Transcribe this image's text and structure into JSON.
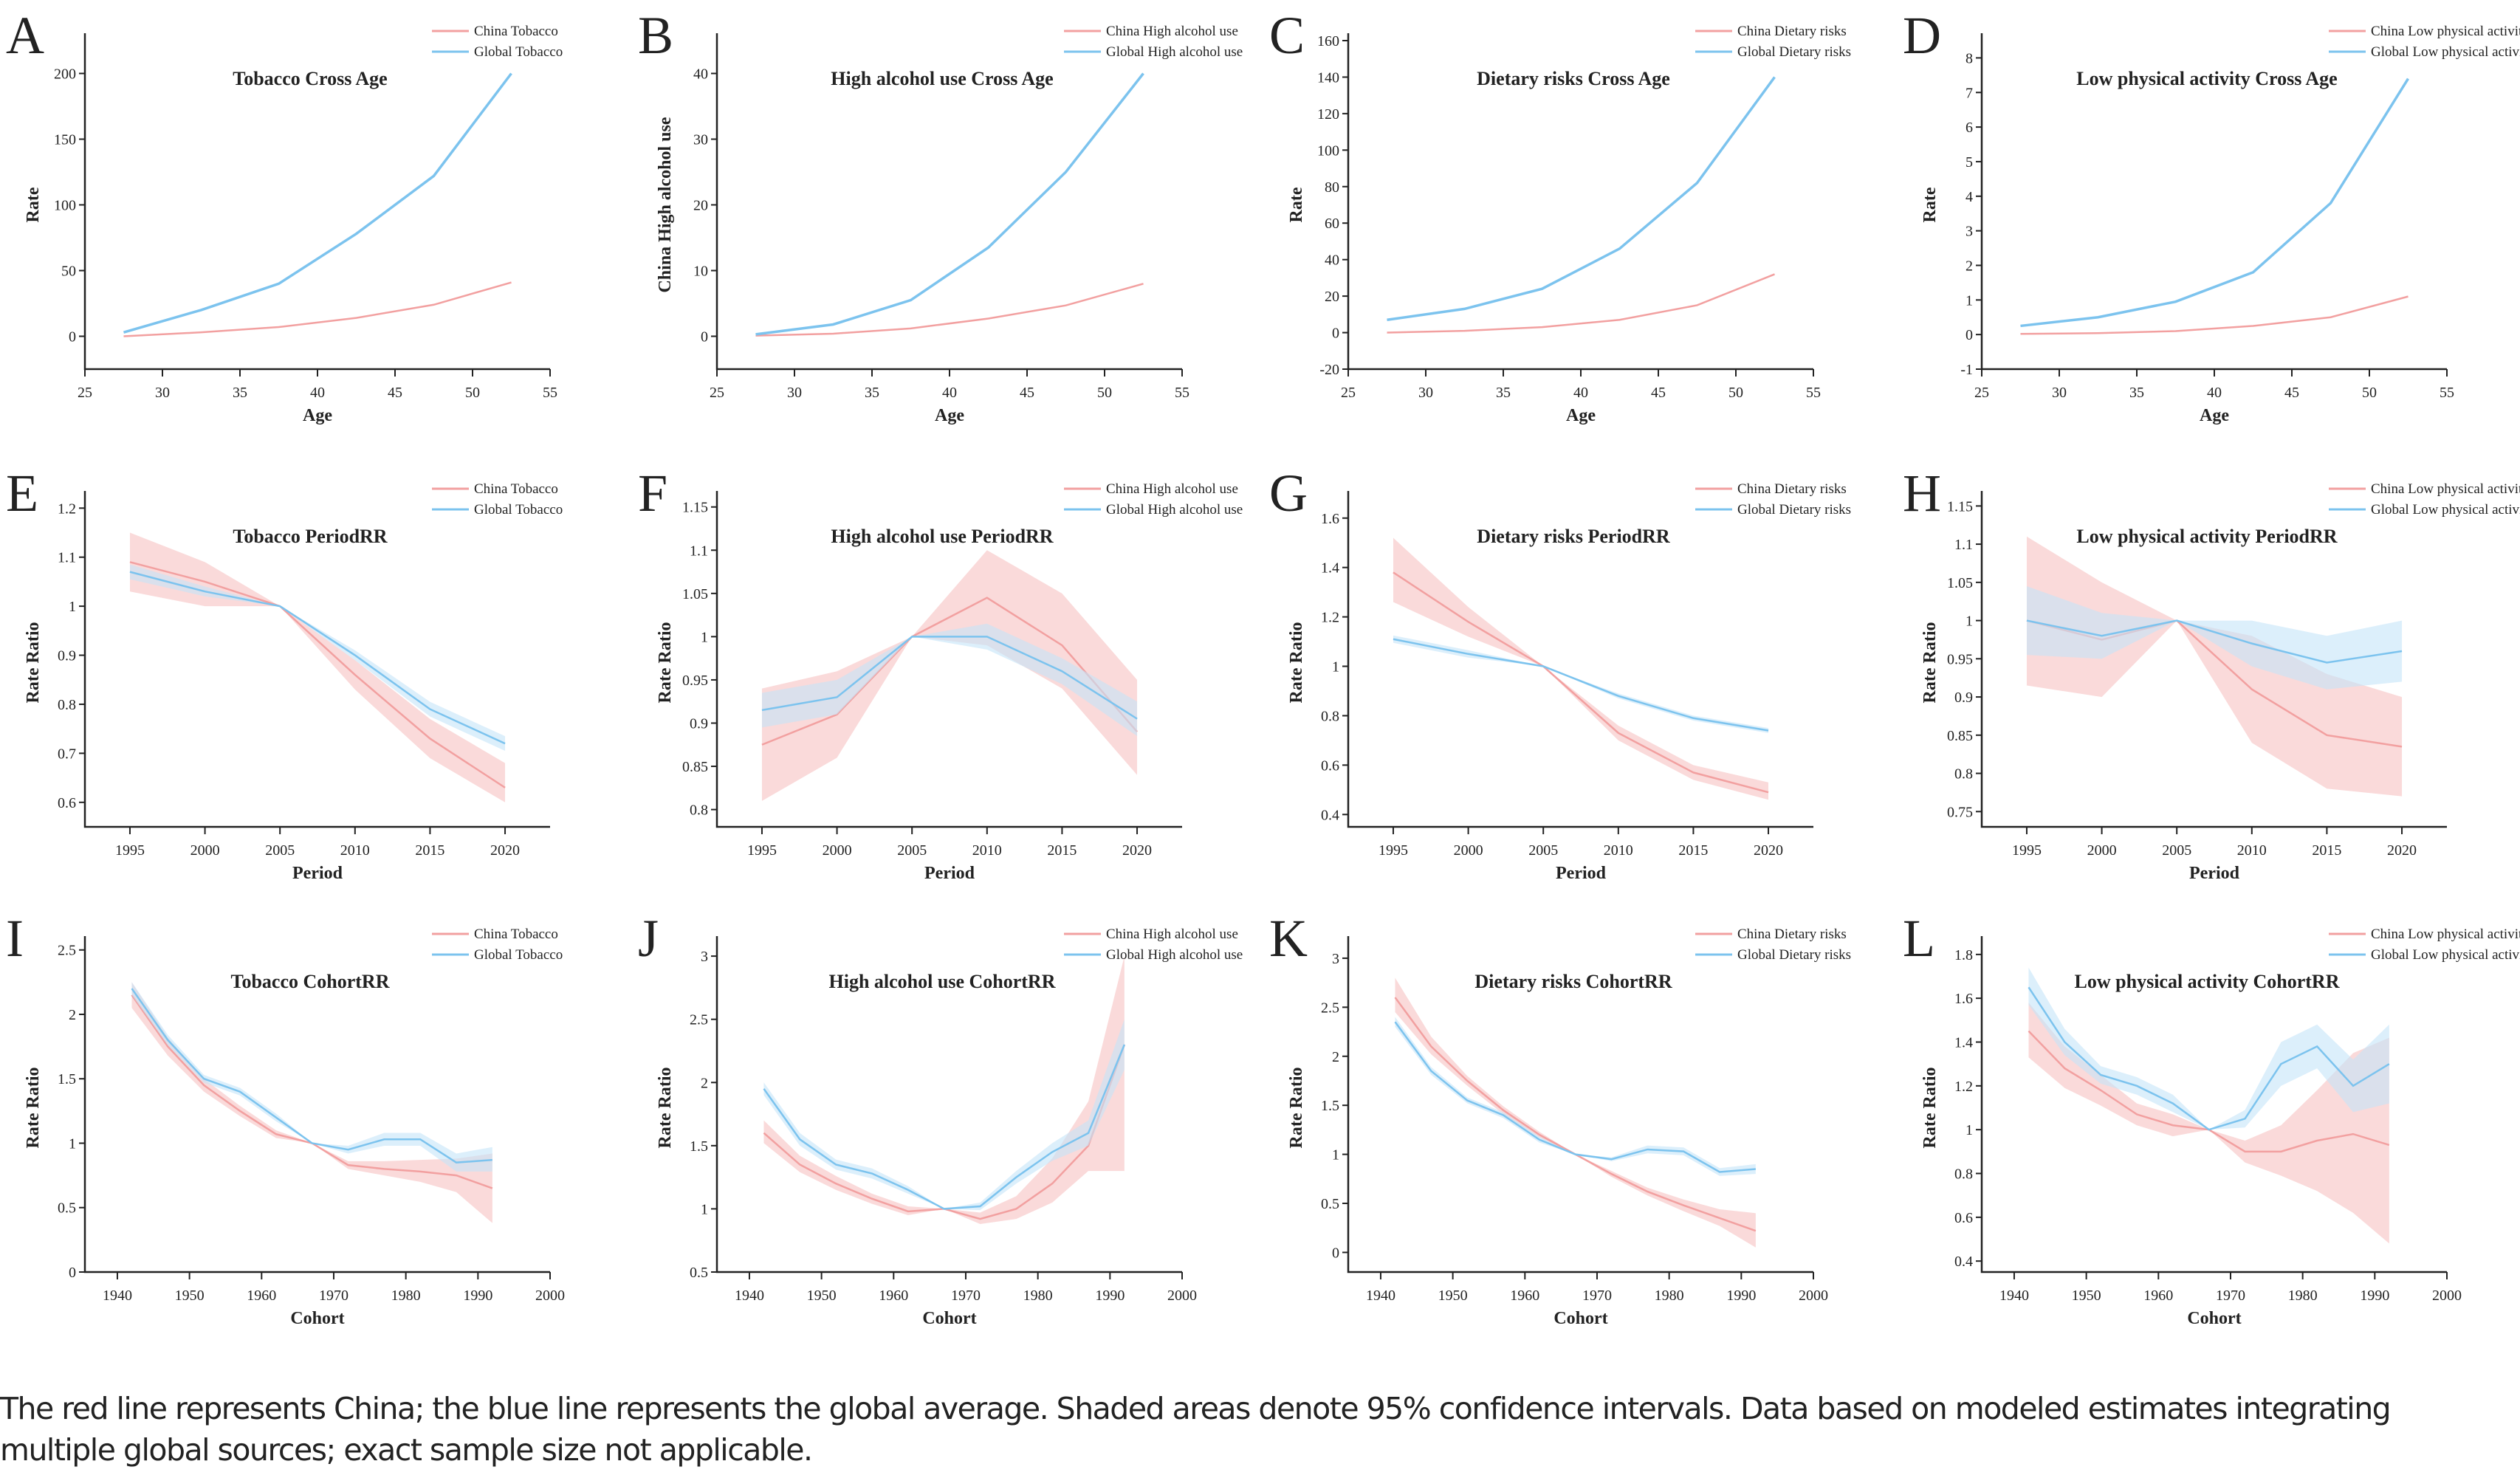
{
  "caption": "The red line represents China; the blue line represents the global average. Shaded areas denote 95% confidence intervals. Data based on modeled estimates integrating multiple global sources; exact sample size not applicable.",
  "colors": {
    "china_line": "#f2a0a0",
    "china_band": "#f7c2c2",
    "global_line": "#7cc3ee",
    "global_band": "#c4e4f8"
  },
  "chart_data": [
    {
      "letter": "A",
      "type": "line",
      "title": "Tobacco Cross Age",
      "xlabel": "Age",
      "ylabel": "Rate",
      "xlim": [
        25,
        55
      ],
      "xticks": [
        25,
        30,
        35,
        40,
        45,
        50,
        55
      ],
      "ylim": [
        -25,
        225
      ],
      "yticks": [
        0,
        50,
        100,
        150,
        200
      ],
      "x": [
        27.5,
        32.5,
        37.5,
        42.5,
        47.5,
        52.5
      ],
      "series": [
        {
          "name": "China Tobacco",
          "values": [
            0,
            3,
            7,
            14,
            24,
            41
          ]
        },
        {
          "name": "Global Tobacco",
          "values": [
            3,
            20,
            40,
            78,
            122,
            200
          ]
        }
      ]
    },
    {
      "letter": "B",
      "type": "line",
      "title": "High alcohol use Cross Age",
      "xlabel": "Age",
      "ylabel": "China High alcohol use",
      "xlim": [
        25,
        55
      ],
      "xticks": [
        25,
        30,
        35,
        40,
        45,
        50,
        55
      ],
      "ylim": [
        -5,
        45
      ],
      "yticks": [
        0,
        10,
        20,
        30,
        40
      ],
      "x": [
        27.5,
        32.5,
        37.5,
        42.5,
        47.5,
        52.5
      ],
      "series": [
        {
          "name": "China High alcohol use",
          "values": [
            0.1,
            0.4,
            1.2,
            2.7,
            4.7,
            8
          ]
        },
        {
          "name": "Global High alcohol use",
          "values": [
            0.3,
            1.8,
            5.5,
            13.5,
            25,
            40
          ]
        }
      ]
    },
    {
      "letter": "C",
      "type": "line",
      "title": "Dietary risks Cross Age",
      "xlabel": "Age",
      "ylabel": "Rate",
      "xlim": [
        25,
        55
      ],
      "xticks": [
        25,
        30,
        35,
        40,
        45,
        50,
        55
      ],
      "ylim": [
        -20,
        160
      ],
      "yticks": [
        -20,
        0,
        20,
        40,
        60,
        80,
        100,
        120,
        140,
        160
      ],
      "x": [
        27.5,
        32.5,
        37.5,
        42.5,
        47.5,
        52.5
      ],
      "series": [
        {
          "name": "China Dietary risks",
          "values": [
            0,
            1,
            3,
            7,
            15,
            32
          ]
        },
        {
          "name": "Global Dietary risks",
          "values": [
            7,
            13,
            24,
            46,
            82,
            140
          ]
        }
      ]
    },
    {
      "letter": "D",
      "type": "line",
      "title": "Low physical activity Cross Age",
      "xlabel": "Age",
      "ylabel": "Rate",
      "xlim": [
        25,
        55
      ],
      "xticks": [
        25,
        30,
        35,
        40,
        45,
        50,
        55
      ],
      "ylim": [
        -1,
        8.5
      ],
      "yticks": [
        -1,
        0,
        1,
        2,
        3,
        4,
        5,
        6,
        7,
        8
      ],
      "x": [
        27.5,
        32.5,
        37.5,
        42.5,
        47.5,
        52.5
      ],
      "series": [
        {
          "name": "China Low physical activity",
          "values": [
            0.02,
            0.04,
            0.1,
            0.25,
            0.5,
            1.1
          ]
        },
        {
          "name": "Global Low physical activity",
          "values": [
            0.25,
            0.5,
            0.95,
            1.8,
            3.8,
            7.4
          ]
        }
      ]
    },
    {
      "letter": "E",
      "type": "area",
      "title": "Tobacco PeriodRR",
      "xlabel": "Period",
      "ylabel": "Rate Ratio",
      "xlim": [
        1992,
        2023
      ],
      "xticks": [
        1995,
        2000,
        2005,
        2010,
        2015,
        2020
      ],
      "ylim": [
        0.55,
        1.22
      ],
      "yticks": [
        0.6,
        0.7,
        0.8,
        0.9,
        1.0,
        1.1,
        1.2
      ],
      "x": [
        1995,
        2000,
        2005,
        2010,
        2015,
        2020
      ],
      "series": [
        {
          "name": "China Tobacco",
          "values": [
            1.09,
            1.05,
            1.0,
            0.86,
            0.73,
            0.63
          ],
          "lower": [
            1.03,
            1.0,
            1.0,
            0.83,
            0.69,
            0.6
          ],
          "upper": [
            1.15,
            1.09,
            1.0,
            0.89,
            0.77,
            0.68
          ]
        },
        {
          "name": "Global Tobacco",
          "values": [
            1.07,
            1.03,
            1.0,
            0.9,
            0.79,
            0.72
          ],
          "lower": [
            1.055,
            1.02,
            1.0,
            0.89,
            0.775,
            0.705
          ],
          "upper": [
            1.085,
            1.04,
            1.0,
            0.91,
            0.805,
            0.735
          ]
        }
      ]
    },
    {
      "letter": "F",
      "type": "area",
      "title": "High alcohol use  PeriodRR",
      "xlabel": "Period",
      "ylabel": "Rate Ratio",
      "xlim": [
        1992,
        2023
      ],
      "xticks": [
        1995,
        2000,
        2005,
        2010,
        2015,
        2020
      ],
      "ylim": [
        0.78,
        1.16
      ],
      "yticks": [
        0.8,
        0.85,
        0.9,
        0.95,
        1.0,
        1.05,
        1.1,
        1.15
      ],
      "x": [
        1995,
        2000,
        2005,
        2010,
        2015,
        2020
      ],
      "series": [
        {
          "name": "China High alcohol use",
          "values": [
            0.875,
            0.91,
            1.0,
            1.045,
            0.99,
            0.89
          ],
          "lower": [
            0.81,
            0.86,
            1.0,
            0.99,
            0.94,
            0.84
          ],
          "upper": [
            0.94,
            0.96,
            1.0,
            1.1,
            1.05,
            0.95
          ]
        },
        {
          "name": "Global High alcohol use",
          "values": [
            0.915,
            0.93,
            1.0,
            1.0,
            0.96,
            0.905
          ],
          "lower": [
            0.895,
            0.91,
            1.0,
            0.985,
            0.945,
            0.885
          ],
          "upper": [
            0.935,
            0.95,
            1.0,
            1.015,
            0.975,
            0.925
          ]
        }
      ]
    },
    {
      "letter": "G",
      "type": "area",
      "title": "Dietary risks PeriodRR",
      "xlabel": "Period",
      "ylabel": "Rate Ratio",
      "xlim": [
        1992,
        2023
      ],
      "xticks": [
        1995,
        2000,
        2005,
        2010,
        2015,
        2020
      ],
      "ylim": [
        0.35,
        1.68
      ],
      "yticks": [
        0.4,
        0.6,
        0.8,
        1.0,
        1.2,
        1.4,
        1.6
      ],
      "x": [
        1995,
        2000,
        2005,
        2010,
        2015,
        2020
      ],
      "series": [
        {
          "name": "China Dietary risks",
          "values": [
            1.38,
            1.18,
            1.0,
            0.73,
            0.57,
            0.49
          ],
          "lower": [
            1.26,
            1.12,
            1.0,
            0.7,
            0.54,
            0.46
          ],
          "upper": [
            1.52,
            1.24,
            1.0,
            0.76,
            0.6,
            0.53
          ]
        },
        {
          "name": "Global Dietary risks",
          "values": [
            1.11,
            1.05,
            1.0,
            0.88,
            0.79,
            0.74
          ],
          "lower": [
            1.095,
            1.035,
            1.0,
            0.87,
            0.78,
            0.73
          ],
          "upper": [
            1.125,
            1.065,
            1.0,
            0.89,
            0.8,
            0.75
          ]
        }
      ]
    },
    {
      "letter": "H",
      "type": "area",
      "title": "Low physical activity PeriodRR",
      "xlabel": "Period",
      "ylabel": "Rate Ratio",
      "xlim": [
        1992,
        2023
      ],
      "xticks": [
        1995,
        2000,
        2005,
        2010,
        2015,
        2020
      ],
      "ylim": [
        0.73,
        1.16
      ],
      "yticks": [
        0.75,
        0.8,
        0.85,
        0.9,
        0.95,
        1.0,
        1.05,
        1.1,
        1.15
      ],
      "x": [
        1995,
        2000,
        2005,
        2010,
        2015,
        2020
      ],
      "series": [
        {
          "name": "China Low physical activity",
          "values": [
            1.0,
            0.975,
            1.0,
            0.91,
            0.85,
            0.835
          ],
          "lower": [
            0.915,
            0.9,
            1.0,
            0.84,
            0.78,
            0.77
          ],
          "upper": [
            1.11,
            1.05,
            1.0,
            0.98,
            0.93,
            0.9
          ]
        },
        {
          "name": "Global Low physical activity",
          "values": [
            1.0,
            0.98,
            1.0,
            0.97,
            0.945,
            0.96
          ],
          "lower": [
            0.955,
            0.95,
            1.0,
            0.94,
            0.91,
            0.92
          ],
          "upper": [
            1.045,
            1.01,
            1.0,
            1.0,
            0.98,
            1.0
          ]
        }
      ]
    },
    {
      "letter": "I",
      "type": "area",
      "title": "Tobacco CohortRR",
      "xlabel": "Cohort",
      "ylabel": "Rate Ratio",
      "xlim": [
        1935.5,
        2000
      ],
      "xticks": [
        1940,
        1950,
        1960,
        1970,
        1980,
        1990,
        2000
      ],
      "ylim": [
        0,
        2.55
      ],
      "yticks": [
        0.0,
        0.5,
        1.0,
        1.5,
        2.0,
        2.5
      ],
      "x": [
        1942,
        1947,
        1952,
        1957,
        1962,
        1967,
        1972,
        1977,
        1982,
        1987,
        1992
      ],
      "series": [
        {
          "name": "China Tobacco",
          "values": [
            2.15,
            1.75,
            1.45,
            1.25,
            1.07,
            1.0,
            0.83,
            0.8,
            0.78,
            0.75,
            0.65
          ],
          "lower": [
            2.05,
            1.68,
            1.4,
            1.21,
            1.04,
            1.0,
            0.8,
            0.75,
            0.7,
            0.62,
            0.38
          ],
          "upper": [
            2.25,
            1.82,
            1.5,
            1.29,
            1.1,
            1.0,
            0.86,
            0.86,
            0.87,
            0.88,
            0.92
          ]
        },
        {
          "name": "Global Tobacco",
          "values": [
            2.2,
            1.8,
            1.5,
            1.4,
            1.2,
            1.0,
            0.95,
            1.03,
            1.03,
            0.85,
            0.87
          ],
          "lower": [
            2.15,
            1.76,
            1.47,
            1.37,
            1.17,
            1.0,
            0.92,
            0.98,
            0.98,
            0.78,
            0.78
          ],
          "upper": [
            2.25,
            1.84,
            1.53,
            1.43,
            1.23,
            1.0,
            0.98,
            1.08,
            1.08,
            0.92,
            0.97
          ]
        }
      ]
    },
    {
      "letter": "J",
      "type": "area",
      "title": "High alcohol use CohortRR",
      "xlabel": "Cohort",
      "ylabel": "Rate Ratio",
      "xlim": [
        1935.5,
        2000
      ],
      "xticks": [
        1940,
        1950,
        1960,
        1970,
        1980,
        1990,
        2000
      ],
      "ylim": [
        0.5,
        3.1
      ],
      "yticks": [
        0.5,
        1.0,
        1.5,
        2.0,
        2.5,
        3.0
      ],
      "x": [
        1942,
        1947,
        1952,
        1957,
        1962,
        1967,
        1972,
        1977,
        1982,
        1987,
        1992
      ],
      "series": [
        {
          "name": "China High alcohol use",
          "values": [
            1.6,
            1.35,
            1.2,
            1.08,
            0.98,
            1.0,
            0.92,
            1.0,
            1.2,
            1.5,
            2.3
          ],
          "lower": [
            1.52,
            1.29,
            1.15,
            1.04,
            0.95,
            1.0,
            0.88,
            0.92,
            1.05,
            1.3,
            1.3
          ],
          "upper": [
            1.7,
            1.42,
            1.26,
            1.12,
            1.02,
            1.0,
            0.97,
            1.1,
            1.4,
            1.85,
            3.0
          ]
        },
        {
          "name": "Global High alcohol use",
          "values": [
            1.95,
            1.55,
            1.35,
            1.28,
            1.15,
            1.0,
            1.02,
            1.25,
            1.45,
            1.6,
            2.3
          ],
          "lower": [
            1.9,
            1.5,
            1.31,
            1.24,
            1.12,
            1.0,
            0.99,
            1.2,
            1.38,
            1.5,
            2.1
          ],
          "upper": [
            2.0,
            1.6,
            1.39,
            1.32,
            1.18,
            1.0,
            1.05,
            1.3,
            1.52,
            1.7,
            2.5
          ]
        }
      ]
    },
    {
      "letter": "K",
      "type": "area",
      "title": "Dietary risks CohortRR",
      "xlabel": "Cohort",
      "ylabel": "Rate Ratio",
      "xlim": [
        1935.5,
        2000
      ],
      "xticks": [
        1940,
        1950,
        1960,
        1970,
        1980,
        1990,
        2000
      ],
      "ylim": [
        -0.2,
        3.15
      ],
      "yticks": [
        0.0,
        0.5,
        1.0,
        1.5,
        2.0,
        2.5,
        3.0
      ],
      "x": [
        1942,
        1947,
        1952,
        1957,
        1962,
        1967,
        1972,
        1977,
        1982,
        1987,
        1992
      ],
      "series": [
        {
          "name": "China Dietary risks",
          "values": [
            2.6,
            2.1,
            1.75,
            1.45,
            1.2,
            1.0,
            0.8,
            0.62,
            0.48,
            0.35,
            0.22
          ],
          "lower": [
            2.45,
            2.02,
            1.7,
            1.41,
            1.17,
            1.0,
            0.77,
            0.58,
            0.42,
            0.27,
            0.05
          ],
          "upper": [
            2.8,
            2.2,
            1.8,
            1.49,
            1.23,
            1.0,
            0.83,
            0.66,
            0.54,
            0.44,
            0.4
          ]
        },
        {
          "name": "Global Dietary risks",
          "values": [
            2.35,
            1.85,
            1.55,
            1.4,
            1.15,
            1.0,
            0.95,
            1.05,
            1.03,
            0.82,
            0.85
          ],
          "lower": [
            2.3,
            1.81,
            1.52,
            1.37,
            1.12,
            1.0,
            0.93,
            1.01,
            0.99,
            0.78,
            0.8
          ],
          "upper": [
            2.4,
            1.89,
            1.58,
            1.43,
            1.18,
            1.0,
            0.97,
            1.09,
            1.07,
            0.86,
            0.9
          ]
        }
      ]
    },
    {
      "letter": "L",
      "type": "area",
      "title": "Low physical activity CohortRR",
      "xlabel": "Cohort",
      "ylabel": "Rate Ratio",
      "xlim": [
        1935.5,
        2000
      ],
      "xticks": [
        1940,
        1950,
        1960,
        1970,
        1980,
        1990,
        2000
      ],
      "ylim": [
        0.35,
        1.85
      ],
      "yticks": [
        0.4,
        0.6,
        0.8,
        1.0,
        1.2,
        1.4,
        1.6,
        1.8
      ],
      "x": [
        1942,
        1947,
        1952,
        1957,
        1962,
        1967,
        1972,
        1977,
        1982,
        1987,
        1992
      ],
      "series": [
        {
          "name": "China Low physical activity",
          "values": [
            1.45,
            1.28,
            1.18,
            1.07,
            1.02,
            1.0,
            0.9,
            0.9,
            0.95,
            0.98,
            0.93
          ],
          "lower": [
            1.33,
            1.19,
            1.11,
            1.02,
            0.97,
            1.0,
            0.85,
            0.79,
            0.72,
            0.62,
            0.48
          ],
          "upper": [
            1.58,
            1.38,
            1.25,
            1.12,
            1.07,
            1.0,
            0.95,
            1.02,
            1.18,
            1.35,
            1.42
          ]
        },
        {
          "name": "Global Low physical activity",
          "values": [
            1.65,
            1.4,
            1.25,
            1.2,
            1.12,
            1.0,
            1.05,
            1.3,
            1.38,
            1.2,
            1.3
          ],
          "lower": [
            1.57,
            1.34,
            1.21,
            1.16,
            1.08,
            1.0,
            1.01,
            1.2,
            1.28,
            1.08,
            1.12
          ],
          "upper": [
            1.74,
            1.46,
            1.29,
            1.24,
            1.16,
            1.0,
            1.09,
            1.4,
            1.48,
            1.32,
            1.48
          ]
        }
      ]
    }
  ]
}
